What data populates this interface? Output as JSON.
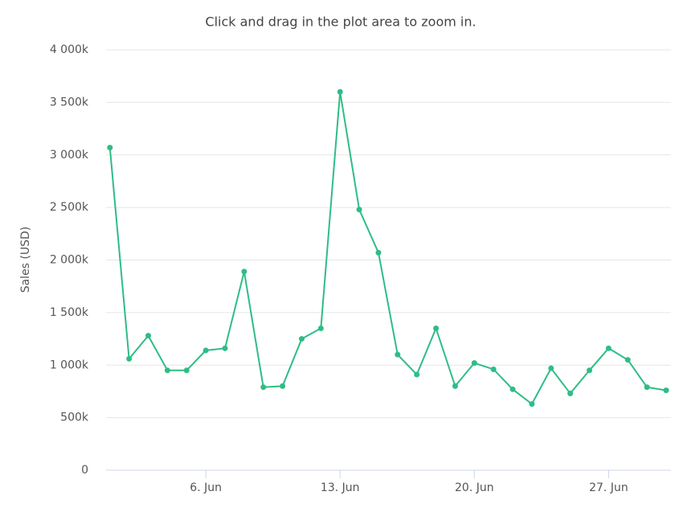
{
  "chart_data": {
    "type": "line",
    "title": "Click and drag in the plot area to zoom in.",
    "y_label": "Sales (USD)",
    "x": [
      1,
      2,
      3,
      4,
      5,
      6,
      7,
      8,
      9,
      10,
      11,
      12,
      13,
      14,
      15,
      16,
      17,
      18,
      19,
      20,
      21,
      22,
      23,
      24,
      25,
      26,
      27,
      28,
      29,
      30
    ],
    "series": [
      {
        "name": "Sales",
        "color": "#2ebd86",
        "values": [
          3070000,
          1060000,
          1280000,
          950000,
          950000,
          1140000,
          1160000,
          1890000,
          790000,
          800000,
          1250000,
          1350000,
          3600000,
          2480000,
          2070000,
          1100000,
          910000,
          1350000,
          800000,
          1020000,
          960000,
          770000,
          630000,
          970000,
          730000,
          950000,
          1160000,
          1050000,
          790000,
          760000
        ]
      }
    ],
    "xlim": [
      0.8,
      30.25
    ],
    "xticks": [
      {
        "value": 6,
        "label": "6. Jun"
      },
      {
        "value": 13,
        "label": "13. Jun"
      },
      {
        "value": 20,
        "label": "20. Jun"
      },
      {
        "value": 27,
        "label": "27. Jun"
      }
    ],
    "ylim": [
      0,
      4000000
    ],
    "yticks": [
      0,
      {
        "value": 500000,
        "label": "500k"
      },
      {
        "value": 1000000,
        "label": "1 000k"
      },
      {
        "value": 1500000,
        "label": "1 500k"
      },
      {
        "value": 2000000,
        "label": "2 000k"
      },
      {
        "value": 2500000,
        "label": "2 500k"
      },
      {
        "value": 3000000,
        "label": "3 000k"
      },
      {
        "value": 3500000,
        "label": "3 500k"
      },
      {
        "value": 4000000,
        "label": "4 000k"
      }
    ],
    "grid": true
  }
}
